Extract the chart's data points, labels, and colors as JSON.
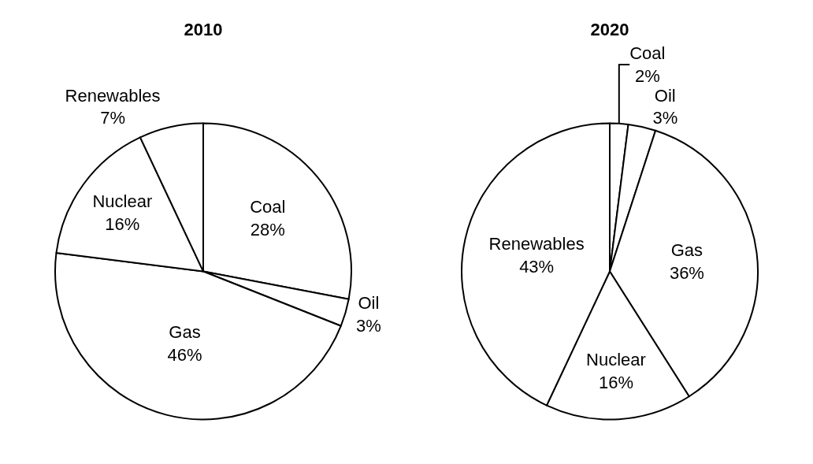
{
  "chart_data": [
    {
      "type": "pie",
      "title": "2010",
      "categories": [
        "Coal",
        "Oil",
        "Gas",
        "Nuclear",
        "Renewables"
      ],
      "values": [
        28,
        3,
        46,
        16,
        7
      ],
      "value_labels": [
        "28%",
        "3%",
        "46%",
        "16%",
        "7%"
      ],
      "colors": [
        "#ffffff",
        "#ffffff",
        "#ffffff",
        "#ffffff",
        "#ffffff"
      ]
    },
    {
      "type": "pie",
      "title": "2020",
      "categories": [
        "Coal",
        "Oil",
        "Gas",
        "Nuclear",
        "Renewables"
      ],
      "values": [
        2,
        3,
        36,
        16,
        43
      ],
      "value_labels": [
        "2%",
        "3%",
        "36%",
        "16%",
        "43%"
      ],
      "colors": [
        "#ffffff",
        "#ffffff",
        "#ffffff",
        "#ffffff",
        "#ffffff"
      ]
    }
  ]
}
